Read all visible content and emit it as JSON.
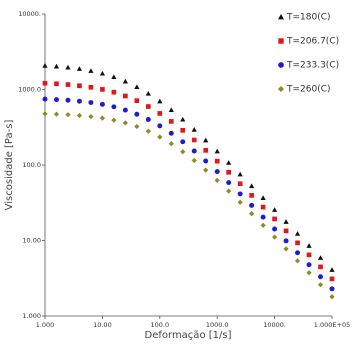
{
  "chart_data": {
    "type": "scatter",
    "x_label": "Deformação [1/s]",
    "y_label": "Viscosidade [Pa-s]",
    "xscale": "log",
    "yscale": "log",
    "xlim": [
      1,
      100000
    ],
    "ylim": [
      1,
      10000
    ],
    "xticks": [
      {
        "value": 1,
        "label": "1.000"
      },
      {
        "value": 10,
        "label": "10.00"
      },
      {
        "value": 100,
        "label": "100.0"
      },
      {
        "value": 1000,
        "label": "1000.0"
      },
      {
        "value": 10000,
        "label": "10000."
      },
      {
        "value": 100000,
        "label": "1.000E+05"
      }
    ],
    "yticks": [
      {
        "value": 1,
        "label": "1.000"
      },
      {
        "value": 10,
        "label": "10.00"
      },
      {
        "value": 100,
        "label": "100.0"
      },
      {
        "value": 1000,
        "label": "1000.0"
      },
      {
        "value": 10000,
        "label": "10000."
      }
    ],
    "legend": "top-right",
    "x": [
      1,
      1.585,
      2.512,
      3.981,
      6.31,
      10,
      15.85,
      25.12,
      39.81,
      63.1,
      100,
      158.5,
      251.2,
      398.1,
      631,
      1000,
      1585,
      2512,
      3981,
      6310,
      10000,
      15850,
      25120,
      39810,
      63100,
      100000
    ],
    "series": [
      {
        "name": "T=180(C)",
        "color": "#111111",
        "marker": "triangle",
        "values": [
          2070,
          2024,
          1962,
          1878,
          1769,
          1632,
          1467,
          1281,
          1082,
          884,
          699,
          536,
          401,
          294,
          212.6,
          151.6,
          107.2,
          75.3,
          52.7,
          36.7,
          25.5,
          17.7,
          12.3,
          8.52,
          5.9,
          4.09
        ]
      },
      {
        "name": "T=206.7(C)",
        "color": "#e01818",
        "marker": "square",
        "values": [
          1211,
          1190,
          1161,
          1122,
          1070,
          1003,
          920,
          821,
          711,
          595,
          482,
          378,
          288,
          214.3,
          156.4,
          112.5,
          80,
          56.5,
          39.6,
          27.7,
          19.3,
          13.4,
          9.31,
          6.45,
          4.47,
          3.1
        ]
      },
      {
        "name": "T=233.3(C)",
        "color": "#1c1cd0",
        "marker": "circle",
        "values": [
          745,
          734,
          720,
          699,
          672,
          636,
          590,
          534,
          470,
          401,
          330,
          263,
          203,
          153.2,
          112.9,
          81.8,
          58.5,
          41.4,
          29.2,
          20.4,
          14.2,
          9.9,
          6.88,
          4.77,
          3.31,
          2.29
        ]
      },
      {
        "name": "T=260(C)",
        "color": "#8c8c22",
        "marker": "diamond",
        "values": [
          477,
          471,
          464,
          453,
          438,
          418,
          393,
          361,
          323,
          280,
          235,
          191,
          150,
          114.8,
          85.6,
          62.6,
          45.1,
          32.1,
          22.7,
          15.9,
          11.1,
          7.74,
          5.38,
          3.74,
          2.59,
          1.8
        ]
      }
    ]
  }
}
